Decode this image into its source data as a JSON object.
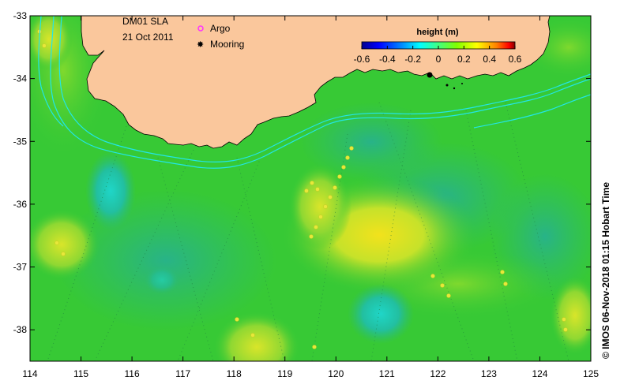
{
  "map": {
    "title": "DM01 SLA",
    "date": "21 Oct 2011",
    "legend": [
      {
        "label": "Argo",
        "color": "#ff33ff",
        "symbol": "ring"
      },
      {
        "label": "Mooring",
        "color": "#000000",
        "symbol": "star"
      }
    ],
    "colorbar": {
      "title": "height (m)",
      "ticks": [
        "-0.6",
        "-0.4",
        "-0.2",
        "0",
        "0.2",
        "0.4",
        "0.6"
      ],
      "colors": [
        "#00008f",
        "#0000ff",
        "#0080ff",
        "#00ffff",
        "#00ff80",
        "#80ff00",
        "#ffff00",
        "#ff8000",
        "#ff0000",
        "#800000"
      ]
    },
    "lon_ticks": [
      "114",
      "115",
      "116",
      "117",
      "118",
      "119",
      "120",
      "121",
      "122",
      "123",
      "124",
      "125"
    ],
    "lat_ticks": [
      "-33",
      "-34",
      "-35",
      "-36",
      "-37",
      "-38"
    ],
    "extent": {
      "lon": [
        114,
        125
      ],
      "lat": [
        -38.5,
        -33
      ]
    },
    "copyright": "© IMOS 06-Nov-2018 01:15 Hobart Time",
    "colors": {
      "land": "#fac79c",
      "sea_base": "#37c935",
      "contour": "#22e6e6"
    }
  }
}
